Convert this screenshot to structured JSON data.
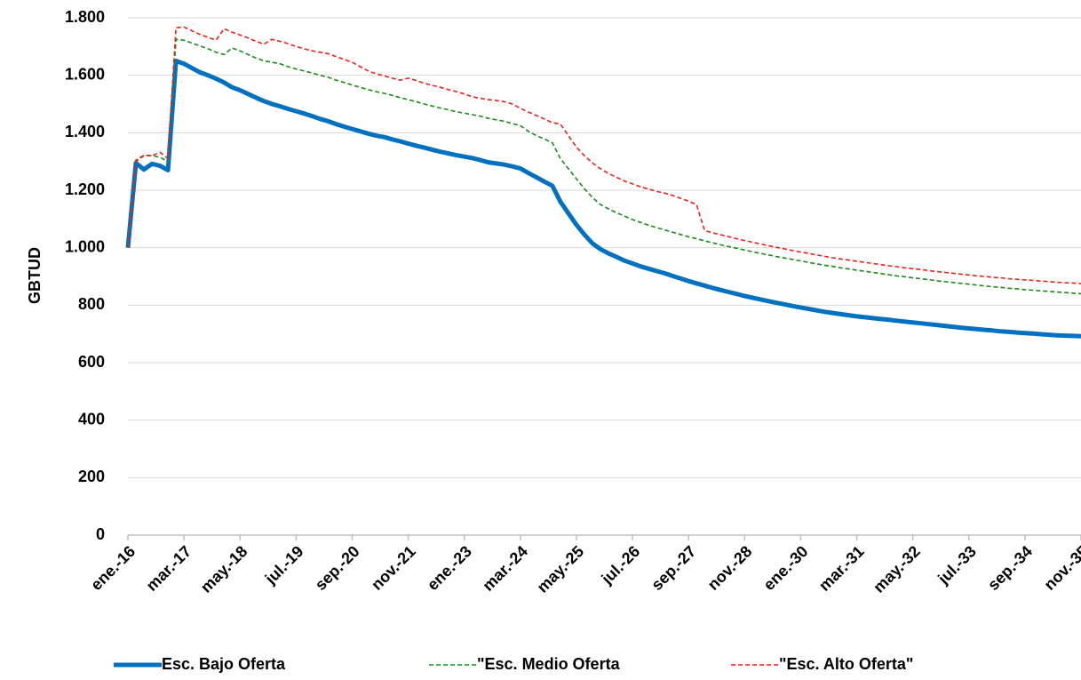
{
  "chart_data": {
    "type": "line",
    "y_label": "GBTUD",
    "categories": [
      "ene.-16",
      null,
      null,
      null,
      null,
      null,
      null,
      "mar.-17",
      null,
      null,
      null,
      null,
      null,
      null,
      "may.-18",
      null,
      null,
      null,
      null,
      null,
      null,
      "jul.-19",
      null,
      null,
      null,
      null,
      null,
      null,
      "sep.-20",
      null,
      null,
      null,
      null,
      null,
      null,
      "nov.-21",
      null,
      null,
      null,
      null,
      null,
      null,
      "ene.-23",
      null,
      null,
      null,
      null,
      null,
      null,
      "mar.-24",
      null,
      null,
      null,
      null,
      null,
      null,
      "may.-25",
      null,
      null,
      null,
      null,
      null,
      null,
      "jul.-26",
      null,
      null,
      null,
      null,
      null,
      null,
      "sep.-27",
      null,
      null,
      null,
      null,
      null,
      null,
      "nov.-28",
      null,
      null,
      null,
      null,
      null,
      null,
      "ene.-30",
      null,
      null,
      null,
      null,
      null,
      null,
      "mar.-31",
      null,
      null,
      null,
      null,
      null,
      null,
      "may.-32",
      null,
      null,
      null,
      null,
      null,
      null,
      "jul.-33",
      null,
      null,
      null,
      null,
      null,
      null,
      "sep.-34",
      null,
      null,
      null,
      null,
      null,
      null,
      "nov.-35"
    ],
    "series": [
      {
        "name": "Esc. Bajo Oferta",
        "color": "#0070c0",
        "dashed": false,
        "values": [
          1000,
          1295,
          1272,
          1292,
          1285,
          1270,
          1650,
          1640,
          1625,
          1610,
          1600,
          1588,
          1575,
          1558,
          1548,
          1535,
          1522,
          1510,
          1500,
          1492,
          1483,
          1475,
          1467,
          1458,
          1448,
          1440,
          1430,
          1421,
          1413,
          1405,
          1397,
          1390,
          1385,
          1377,
          1370,
          1362,
          1355,
          1348,
          1341,
          1334,
          1328,
          1322,
          1317,
          1312,
          1305,
          1297,
          1293,
          1289,
          1283,
          1276,
          1260,
          1245,
          1230,
          1215,
          1160,
          1120,
          1080,
          1045,
          1015,
          995,
          980,
          968,
          955,
          945,
          935,
          927,
          919,
          911,
          902,
          893,
          884,
          876,
          868,
          860,
          853,
          846,
          839,
          832,
          826,
          820,
          814,
          808,
          803,
          797,
          792,
          787,
          782,
          777,
          773,
          769,
          765,
          761,
          758,
          755,
          752,
          749,
          746,
          743,
          740,
          737,
          734,
          731,
          728,
          725,
          722,
          719,
          717,
          714,
          712,
          709,
          707,
          705,
          703,
          701,
          699,
          697,
          695,
          694,
          693,
          692
        ]
      },
      {
        "name": "\"Esc. Medio Oferta",
        "color": "#1a8a1a",
        "dashed": true,
        "values": [
          1000,
          1300,
          1320,
          1320,
          1315,
          1300,
          1725,
          1722,
          1712,
          1702,
          1692,
          1680,
          1672,
          1695,
          1685,
          1672,
          1660,
          1650,
          1645,
          1640,
          1630,
          1622,
          1615,
          1608,
          1600,
          1593,
          1583,
          1575,
          1566,
          1558,
          1550,
          1543,
          1537,
          1530,
          1522,
          1515,
          1508,
          1500,
          1493,
          1486,
          1480,
          1473,
          1468,
          1463,
          1458,
          1450,
          1445,
          1440,
          1432,
          1425,
          1405,
          1390,
          1378,
          1365,
          1310,
          1275,
          1240,
          1205,
          1175,
          1150,
          1135,
          1122,
          1110,
          1098,
          1088,
          1078,
          1070,
          1062,
          1054,
          1046,
          1038,
          1031,
          1024,
          1017,
          1010,
          1004,
          998,
          992,
          986,
          980,
          975,
          969,
          964,
          959,
          954,
          949,
          944,
          939,
          935,
          930,
          926,
          922,
          918,
          914,
          910,
          906,
          902,
          899,
          895,
          892,
          889,
          885,
          882,
          879,
          876,
          873,
          870,
          867,
          864,
          862,
          859,
          857,
          854,
          852,
          850,
          848,
          846,
          844,
          842,
          840
        ]
      },
      {
        "name": "\"Esc. Alto Oferta\"",
        "color": "#e8221c",
        "dashed": true,
        "values": [
          1000,
          1305,
          1322,
          1320,
          1332,
          1310,
          1765,
          1768,
          1755,
          1742,
          1732,
          1722,
          1762,
          1750,
          1740,
          1730,
          1718,
          1708,
          1725,
          1718,
          1710,
          1700,
          1692,
          1685,
          1680,
          1675,
          1665,
          1655,
          1645,
          1630,
          1615,
          1605,
          1598,
          1590,
          1583,
          1590,
          1582,
          1572,
          1565,
          1558,
          1550,
          1543,
          1535,
          1525,
          1520,
          1515,
          1512,
          1508,
          1500,
          1485,
          1472,
          1460,
          1448,
          1435,
          1430,
          1390,
          1350,
          1320,
          1295,
          1275,
          1258,
          1245,
          1232,
          1222,
          1212,
          1204,
          1196,
          1190,
          1182,
          1172,
          1162,
          1150,
          1060,
          1052,
          1045,
          1038,
          1031,
          1025,
          1019,
          1013,
          1007,
          1001,
          996,
          990,
          985,
          980,
          975,
          970,
          965,
          961,
          957,
          953,
          949,
          945,
          941,
          937,
          934,
          930,
          927,
          924,
          920,
          917,
          914,
          911,
          908,
          905,
          902,
          900,
          897,
          895,
          892,
          890,
          888,
          886,
          884,
          882,
          880,
          878,
          877,
          875
        ]
      }
    ],
    "ylim": [
      0,
      1800
    ],
    "yticks": [
      0,
      200,
      400,
      600,
      800,
      {
        "value": 1000,
        "label": "1.000"
      },
      {
        "value": 1200,
        "label": "1.200"
      },
      {
        "value": 1400,
        "label": "1.400"
      },
      {
        "value": 1600,
        "label": "1.600"
      },
      {
        "value": 1800,
        "label": "1.800"
      }
    ],
    "grid": true,
    "legend": "bottom"
  }
}
